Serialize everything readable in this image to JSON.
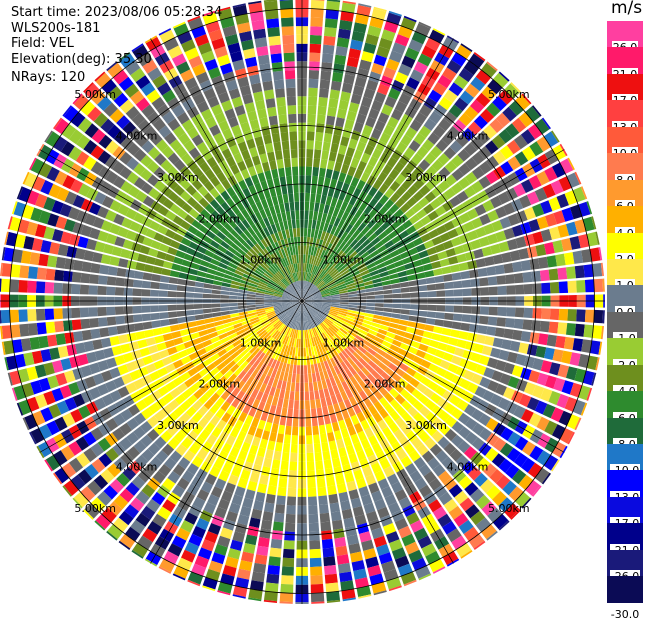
{
  "header": {
    "start_time": "Start time: 2023/08/06 05:28:34",
    "site": "WLS200s-181",
    "field": "Field: VEL",
    "elevation": "Elevation(deg): 35.30",
    "nrays": "NRays: 120"
  },
  "colorbar": {
    "unit": "m/s",
    "bins": [
      {
        "label": "26.0",
        "color": "#ff3fa0"
      },
      {
        "label": "21.0",
        "color": "#ff1a6a"
      },
      {
        "label": "17.0",
        "color": "#ee1010"
      },
      {
        "label": "13.0",
        "color": "#ff4040"
      },
      {
        "label": "10.0",
        "color": "#ff5a3a"
      },
      {
        "label": "8.0",
        "color": "#ff7b4f"
      },
      {
        "label": "6.0",
        "color": "#ff9a2e"
      },
      {
        "label": "4.0",
        "color": "#ffb000"
      },
      {
        "label": "2.0",
        "color": "#ffff00"
      },
      {
        "label": "1.0",
        "color": "#ffe84a"
      },
      {
        "label": "0.0",
        "color": "#6b7c8e"
      },
      {
        "label": "-1.0",
        "color": "#666666"
      },
      {
        "label": "-2.0",
        "color": "#99cc33"
      },
      {
        "label": "-4.0",
        "color": "#6e8f1e"
      },
      {
        "label": "-6.0",
        "color": "#2e8b2e"
      },
      {
        "label": "-8.0",
        "color": "#1f6b3a"
      },
      {
        "label": "-10.0",
        "color": "#1f78c8"
      },
      {
        "label": "-13.0",
        "color": "#0000ff"
      },
      {
        "label": "-17.0",
        "color": "#0a0adf"
      },
      {
        "label": "-21.0",
        "color": "#00008b"
      },
      {
        "label": "-26.0",
        "color": "#1a1a7a"
      },
      {
        "label": "-30.0",
        "color": "#0b0b55"
      }
    ],
    "bottom_label": "-30.0"
  },
  "chart_data": {
    "type": "ppi",
    "field": "VEL",
    "units": "m/s",
    "nrays": 120,
    "elevation_deg": 35.3,
    "range_ring_labels": [
      "1.00km",
      "2.00km",
      "3.00km",
      "4.00km",
      "5.00km"
    ],
    "range_ring_km": [
      1,
      2,
      3,
      4,
      5
    ],
    "spokes_deg": [
      0,
      30,
      60,
      90,
      120,
      150,
      180,
      210,
      240,
      270,
      300,
      330
    ]
  }
}
